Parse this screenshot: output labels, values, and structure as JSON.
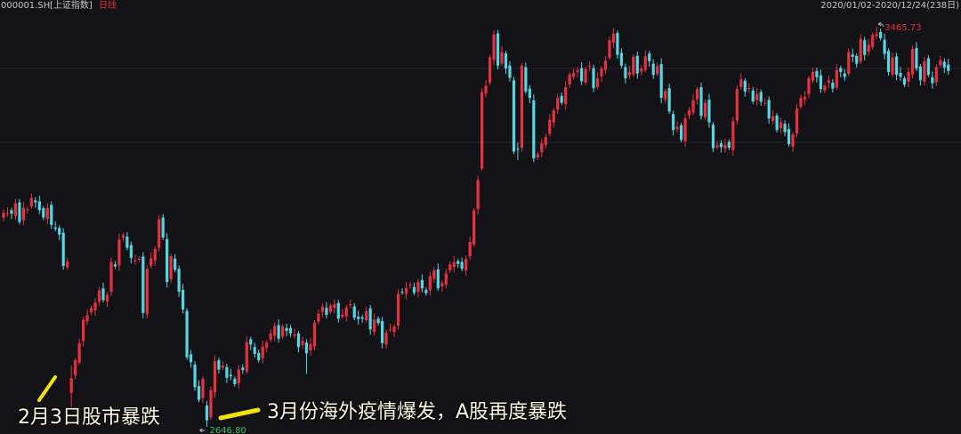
{
  "header": {
    "code": "000001.SH",
    "name": "[上证指数]",
    "period": "日线",
    "range": "2020/01/02-2020/12/24(238日)"
  },
  "chart_data": {
    "type": "candlestick",
    "ylim": [
      2632,
      3493
    ],
    "up_color": "#e8313f",
    "down_color": "#55d6e3",
    "max_label": "3465.73",
    "min_label": "2646.80",
    "annotations": [
      "2月3日股市暴跌",
      "3月份海外疫情爆发，A股再度暴跌"
    ],
    "candles": [
      [
        3075,
        3092,
        3067,
        3085
      ],
      [
        3082,
        3096,
        3077,
        3084
      ],
      [
        3090,
        3095,
        3072,
        3083
      ],
      [
        3078,
        3113,
        3070,
        3104
      ],
      [
        3106,
        3113,
        3061,
        3066
      ],
      [
        3070,
        3107,
        3059,
        3095
      ],
      [
        3092,
        3097,
        3084,
        3092
      ],
      [
        3098,
        3124,
        3093,
        3115
      ],
      [
        3110,
        3117,
        3095,
        3106
      ],
      [
        3108,
        3120,
        3082,
        3090
      ],
      [
        3094,
        3099,
        3070,
        3075
      ],
      [
        3072,
        3104,
        3061,
        3095
      ],
      [
        3101,
        3108,
        3052,
        3060
      ],
      [
        3055,
        3067,
        3047,
        3052
      ],
      [
        3054,
        3059,
        3029,
        3040
      ],
      [
        3044,
        3053,
        2968,
        2976
      ],
      [
        2973,
        2992,
        2968,
        2985
      ],
      [
        2716,
        2772,
        2685,
        2746
      ],
      [
        2752,
        2788,
        2744,
        2783
      ],
      [
        2778,
        2827,
        2773,
        2818
      ],
      [
        2822,
        2873,
        2811,
        2866
      ],
      [
        2863,
        2887,
        2855,
        2875
      ],
      [
        2881,
        2895,
        2876,
        2890
      ],
      [
        2885,
        2910,
        2874,
        2901
      ],
      [
        2903,
        2933,
        2895,
        2926
      ],
      [
        2930,
        2942,
        2901,
        2906
      ],
      [
        2903,
        2922,
        2892,
        2917
      ],
      [
        2923,
        2993,
        2915,
        2984
      ],
      [
        2979,
        2986,
        2970,
        2975
      ],
      [
        2977,
        3042,
        2966,
        3030
      ],
      [
        3034,
        3044,
        3026,
        3039
      ],
      [
        3036,
        3045,
        3008,
        3013
      ],
      [
        3019,
        3026,
        2981,
        2992
      ],
      [
        2987,
        2999,
        2979,
        2987
      ],
      [
        2989,
        2996,
        2984,
        2991
      ],
      [
        2995,
        3004,
        2869,
        2880
      ],
      [
        2877,
        2977,
        2869,
        2970
      ],
      [
        2976,
        3004,
        2971,
        2992
      ],
      [
        2987,
        3016,
        2976,
        3011
      ],
      [
        3013,
        3080,
        3005,
        3071
      ],
      [
        3075,
        3082,
        3029,
        3034
      ],
      [
        3031,
        3043,
        2932,
        2943
      ],
      [
        2949,
        3001,
        2941,
        2996
      ],
      [
        2991,
        3000,
        2963,
        2968
      ],
      [
        2970,
        2977,
        2912,
        2923
      ],
      [
        2927,
        2939,
        2879,
        2887
      ],
      [
        2884,
        2889,
        2784,
        2789
      ],
      [
        2795,
        2804,
        2768,
        2779
      ],
      [
        2774,
        2781,
        2720,
        2728
      ],
      [
        2730,
        2742,
        2697,
        2702
      ],
      [
        2706,
        2750,
        2695,
        2745
      ],
      [
        2690,
        2700,
        2646.8,
        2660
      ],
      [
        2666,
        2729,
        2661,
        2722
      ],
      [
        2717,
        2793,
        2706,
        2781
      ],
      [
        2783,
        2788,
        2756,
        2764
      ],
      [
        2768,
        2781,
        2763,
        2772
      ],
      [
        2769,
        2776,
        2736,
        2747
      ],
      [
        2753,
        2765,
        2742,
        2750
      ],
      [
        2745,
        2750,
        2729,
        2734
      ],
      [
        2736,
        2773,
        2725,
        2764
      ],
      [
        2768,
        2775,
        2755,
        2763
      ],
      [
        2760,
        2832,
        2755,
        2820
      ],
      [
        2826,
        2831,
        2804,
        2815
      ],
      [
        2810,
        2819,
        2788,
        2796
      ],
      [
        2798,
        2805,
        2778,
        2783
      ],
      [
        2787,
        2823,
        2776,
        2811
      ],
      [
        2808,
        2824,
        2800,
        2819
      ],
      [
        2825,
        2847,
        2820,
        2838
      ],
      [
        2833,
        2860,
        2822,
        2853
      ],
      [
        2855,
        2867,
        2819,
        2827
      ],
      [
        2831,
        2857,
        2826,
        2852
      ],
      [
        2849,
        2858,
        2832,
        2843
      ],
      [
        2849,
        2856,
        2830,
        2838
      ],
      [
        2833,
        2848,
        2828,
        2836
      ],
      [
        2838,
        2843,
        2799,
        2810
      ],
      [
        2814,
        2831,
        2806,
        2822
      ],
      [
        2819,
        2826,
        2755,
        2797
      ],
      [
        2803,
        2828,
        2792,
        2816
      ],
      [
        2811,
        2865,
        2803,
        2860
      ],
      [
        2862,
        2887,
        2857,
        2878
      ],
      [
        2882,
        2900,
        2871,
        2893
      ],
      [
        2890,
        2902,
        2868,
        2876
      ],
      [
        2882,
        2900,
        2877,
        2895
      ],
      [
        2890,
        2907,
        2879,
        2898
      ],
      [
        2900,
        2907,
        2860,
        2868
      ],
      [
        2872,
        2888,
        2867,
        2876
      ],
      [
        2873,
        2896,
        2862,
        2891
      ],
      [
        2897,
        2907,
        2889,
        2898
      ],
      [
        2893,
        2900,
        2865,
        2870
      ],
      [
        2872,
        2884,
        2856,
        2867
      ],
      [
        2871,
        2876,
        2860,
        2868
      ],
      [
        2865,
        2892,
        2860,
        2883
      ],
      [
        2889,
        2896,
        2835,
        2846
      ],
      [
        2841,
        2878,
        2833,
        2866
      ],
      [
        2868,
        2873,
        2854,
        2859
      ],
      [
        2863,
        2872,
        2807,
        2818
      ],
      [
        2815,
        2846,
        2807,
        2839
      ],
      [
        2845,
        2858,
        2840,
        2846
      ],
      [
        2841,
        2857,
        2830,
        2852
      ],
      [
        2854,
        2928,
        2846,
        2919
      ],
      [
        2923,
        2930,
        2917,
        2922
      ],
      [
        2919,
        2943,
        2908,
        2931
      ],
      [
        2937,
        2943,
        2929,
        2938
      ],
      [
        2933,
        2942,
        2916,
        2921
      ],
      [
        2923,
        2950,
        2912,
        2943
      ],
      [
        2947,
        2959,
        2922,
        2930
      ],
      [
        2927,
        2932,
        2915,
        2920
      ],
      [
        2926,
        2964,
        2915,
        2955
      ],
      [
        2950,
        2974,
        2942,
        2967
      ],
      [
        2969,
        2981,
        2925,
        2930
      ],
      [
        2934,
        2946,
        2923,
        2941
      ],
      [
        2938,
        2970,
        2930,
        2961
      ],
      [
        2967,
        2986,
        2962,
        2979
      ],
      [
        2974,
        2996,
        2963,
        2984
      ],
      [
        2986,
        2991,
        2972,
        2980
      ],
      [
        2984,
        2993,
        2965,
        2970
      ],
      [
        2967,
        2997,
        2956,
        2990
      ],
      [
        2996,
        3037,
        2988,
        3025
      ],
      [
        3020,
        3095,
        3015,
        3090
      ],
      [
        3092,
        3161,
        3081,
        3152
      ],
      [
        3175,
        3340,
        3170,
        3332
      ],
      [
        3329,
        3357,
        3321,
        3345
      ],
      [
        3351,
        3408,
        3346,
        3403
      ],
      [
        3398,
        3459,
        3387,
        3450
      ],
      [
        3452,
        3459,
        3378,
        3386
      ],
      [
        3390,
        3426,
        3385,
        3414
      ],
      [
        3411,
        3416,
        3369,
        3380
      ],
      [
        3386,
        3395,
        3353,
        3361
      ],
      [
        3356,
        3363,
        3205,
        3210
      ],
      [
        3216,
        3228,
        3193,
        3214
      ],
      [
        3218,
        3391,
        3210,
        3386
      ],
      [
        3383,
        3392,
        3328,
        3333
      ],
      [
        3339,
        3346,
        3309,
        3320
      ],
      [
        3315,
        3327,
        3188,
        3196
      ],
      [
        3198,
        3210,
        3193,
        3205
      ],
      [
        3209,
        3236,
        3198,
        3227
      ],
      [
        3224,
        3247,
        3216,
        3240
      ],
      [
        3246,
        3287,
        3241,
        3275
      ],
      [
        3270,
        3299,
        3259,
        3294
      ],
      [
        3296,
        3329,
        3288,
        3320
      ],
      [
        3324,
        3331,
        3305,
        3310
      ],
      [
        3307,
        3354,
        3296,
        3342
      ],
      [
        3348,
        3373,
        3340,
        3368
      ],
      [
        3363,
        3380,
        3358,
        3371
      ],
      [
        3373,
        3384,
        3362,
        3377
      ],
      [
        3381,
        3393,
        3346,
        3354
      ],
      [
        3351,
        3384,
        3346,
        3379
      ],
      [
        3385,
        3395,
        3374,
        3386
      ],
      [
        3381,
        3388,
        3332,
        3340
      ],
      [
        3342,
        3372,
        3337,
        3360
      ],
      [
        3364,
        3385,
        3353,
        3380
      ],
      [
        3377,
        3405,
        3369,
        3396
      ],
      [
        3402,
        3445,
        3397,
        3438
      ],
      [
        3433,
        3463,
        3422,
        3451
      ],
      [
        3453,
        3458,
        3400,
        3408
      ],
      [
        3412,
        3421,
        3381,
        3386
      ],
      [
        3383,
        3390,
        3349,
        3360
      ],
      [
        3366,
        3385,
        3358,
        3373
      ],
      [
        3368,
        3409,
        3363,
        3404
      ],
      [
        3406,
        3415,
        3359,
        3370
      ],
      [
        3374,
        3387,
        3366,
        3380
      ],
      [
        3377,
        3417,
        3372,
        3405
      ],
      [
        3411,
        3416,
        3384,
        3395
      ],
      [
        3390,
        3399,
        3359,
        3367
      ],
      [
        3369,
        3392,
        3364,
        3385
      ],
      [
        3389,
        3401,
        3309,
        3320
      ],
      [
        3317,
        3339,
        3309,
        3334
      ],
      [
        3340,
        3349,
        3287,
        3292
      ],
      [
        3287,
        3294,
        3243,
        3254
      ],
      [
        3256,
        3272,
        3248,
        3260
      ],
      [
        3264,
        3269,
        3229,
        3234
      ],
      [
        3231,
        3287,
        3220,
        3278
      ],
      [
        3284,
        3302,
        3276,
        3295
      ],
      [
        3290,
        3327,
        3285,
        3315
      ],
      [
        3317,
        3343,
        3306,
        3338
      ],
      [
        3342,
        3351,
        3275,
        3283
      ],
      [
        3280,
        3317,
        3275,
        3310
      ],
      [
        3316,
        3328,
        3259,
        3270
      ],
      [
        3265,
        3270,
        3209,
        3217
      ],
      [
        3219,
        3232,
        3214,
        3223
      ],
      [
        3227,
        3234,
        3208,
        3219
      ],
      [
        3216,
        3236,
        3208,
        3224
      ],
      [
        3230,
        3235,
        3213,
        3218
      ],
      [
        3213,
        3281,
        3202,
        3272
      ],
      [
        3274,
        3345,
        3266,
        3338
      ],
      [
        3342,
        3370,
        3337,
        3358
      ],
      [
        3355,
        3360,
        3322,
        3333
      ],
      [
        3339,
        3349,
        3331,
        3340
      ],
      [
        3335,
        3342,
        3308,
        3313
      ],
      [
        3315,
        3340,
        3304,
        3328
      ],
      [
        3332,
        3337,
        3304,
        3312
      ],
      [
        3309,
        3319,
        3304,
        3310
      ],
      [
        3316,
        3323,
        3267,
        3278
      ],
      [
        3273,
        3294,
        3265,
        3282
      ],
      [
        3284,
        3289,
        3249,
        3254
      ],
      [
        3258,
        3279,
        3247,
        3270
      ],
      [
        3267,
        3274,
        3242,
        3250
      ],
      [
        3256,
        3268,
        3220,
        3225
      ],
      [
        3220,
        3250,
        3209,
        3245
      ],
      [
        3247,
        3307,
        3239,
        3298
      ],
      [
        3302,
        3327,
        3297,
        3320
      ],
      [
        3317,
        3334,
        3306,
        3322
      ],
      [
        3328,
        3365,
        3320,
        3360
      ],
      [
        3355,
        3382,
        3350,
        3373
      ],
      [
        3375,
        3382,
        3351,
        3362
      ],
      [
        3366,
        3378,
        3330,
        3338
      ],
      [
        3335,
        3350,
        3330,
        3345
      ],
      [
        3351,
        3365,
        3340,
        3356
      ],
      [
        3351,
        3358,
        3331,
        3339
      ],
      [
        3341,
        3389,
        3336,
        3377
      ],
      [
        3381,
        3386,
        3362,
        3373
      ],
      [
        3370,
        3379,
        3355,
        3363
      ],
      [
        3369,
        3421,
        3364,
        3414
      ],
      [
        3409,
        3421,
        3393,
        3404
      ],
      [
        3406,
        3411,
        3382,
        3390
      ],
      [
        3394,
        3450,
        3389,
        3441
      ],
      [
        3438,
        3445,
        3397,
        3408
      ],
      [
        3414,
        3441,
        3406,
        3429
      ],
      [
        3424,
        3454,
        3419,
        3449
      ],
      [
        3446,
        3465.73,
        3440,
        3451
      ],
      [
        3455,
        3462,
        3437,
        3442
      ],
      [
        3439,
        3451,
        3399,
        3410
      ],
      [
        3416,
        3421,
        3365,
        3373
      ],
      [
        3368,
        3412,
        3363,
        3403
      ],
      [
        3405,
        3412,
        3356,
        3367
      ],
      [
        3371,
        3383,
        3355,
        3363
      ],
      [
        3360,
        3365,
        3342,
        3347
      ],
      [
        3353,
        3382,
        3342,
        3373
      ],
      [
        3368,
        3427,
        3360,
        3420
      ],
      [
        3422,
        3434,
        3375,
        3380
      ],
      [
        3384,
        3389,
        3345,
        3356
      ],
      [
        3353,
        3404,
        3345,
        3395
      ],
      [
        3401,
        3408,
        3362,
        3367
      ],
      [
        3362,
        3374,
        3339,
        3350
      ],
      [
        3352,
        3388,
        3344,
        3383
      ],
      [
        3387,
        3406,
        3382,
        3397
      ],
      [
        3394,
        3401,
        3371,
        3382
      ],
      [
        3388,
        3400,
        3367,
        3375
      ]
    ]
  }
}
